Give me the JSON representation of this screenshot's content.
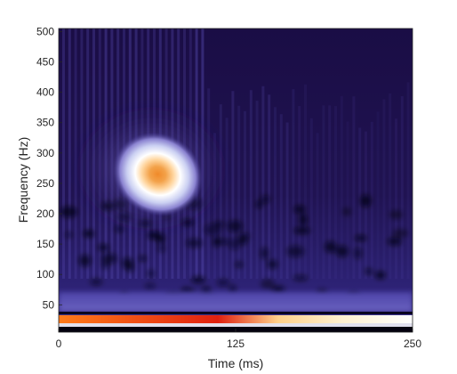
{
  "chart_data": {
    "type": "heatmap",
    "title": "",
    "xlabel": "Time (ms)",
    "ylabel": "Frequency (Hz)",
    "xlim": [
      0,
      250
    ],
    "ylim": [
      5,
      505
    ],
    "x_ticks": [
      0,
      125,
      250
    ],
    "y_ticks": [
      50,
      100,
      150,
      200,
      250,
      300,
      350,
      400,
      450,
      500
    ],
    "colormap": [
      "#000000",
      "#1a0a3a",
      "#3b2a78",
      "#6b5ab0",
      "#a99ad8",
      "#ffffff",
      "#ffd28a",
      "#f08a2a",
      "#e03a10",
      "#b00000"
    ],
    "peak": {
      "time_ms": 70,
      "frequency_hz": 265
    },
    "grid": false
  },
  "colors": {
    "axis": "#262626"
  }
}
